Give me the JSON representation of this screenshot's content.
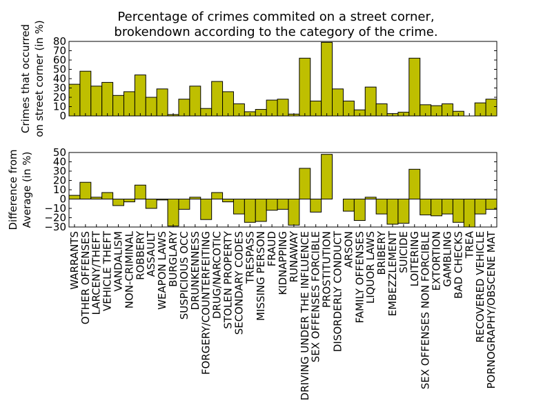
{
  "chart_data": {
    "type": "bar",
    "title_lines": [
      "Percentage of crimes commited on a street corner,",
      "brokendown according to the category of the crime."
    ],
    "bar_color": "#bfbf00",
    "edge_color": "#000000",
    "categories": [
      "WARRANTS",
      "OTHER OFFENSES",
      "LARCENY/THEFT",
      "VEHICLE THEFT",
      "VANDALISM",
      "NON-CRIMINAL",
      "ROBBERY",
      "ASSAULT",
      "WEAPON LAWS",
      "BURGLARY",
      "SUSPICIOUS OCC",
      "DRUNKENNESS",
      "FORGERY/COUNTERFEITING",
      "DRUG/NARCOTIC",
      "STOLEN PROPERTY",
      "SECONDARY CODES",
      "TRESPASS",
      "MISSING PERSON",
      "FRAUD",
      "KIDNAPPING",
      "RUNAWAY",
      "DRIVING UNDER THE INFLUENCE",
      "SEX OFFENSES FORCIBLE",
      "PROSTITUTION",
      "DISORDERLY CONDUCT",
      "ARSON",
      "FAMILY OFFENSES",
      "LIQUOR LAWS",
      "BRIBERY",
      "EMBEZZLEMENT",
      "SUICIDE",
      "LOITERING",
      "SEX OFFENSES NON FORCIBLE",
      "EXTORTION",
      "GAMBLING",
      "BAD CHECKS",
      "TREA",
      "RECOVERED VEHICLE",
      "PORNOGRAPHY/OBSCENE MAT"
    ],
    "panels": [
      {
        "ylabel_lines": [
          "Crimes that occurred",
          "on street corner (in %)"
        ],
        "ylim": [
          0,
          80
        ],
        "yticks": [
          0,
          10,
          20,
          30,
          40,
          50,
          60,
          70,
          80
        ],
        "values": [
          34,
          48,
          32,
          36,
          22,
          26,
          44,
          20,
          29,
          1.5,
          18,
          32,
          8,
          37,
          26,
          13,
          4.5,
          7,
          17,
          18,
          2,
          62,
          16,
          79,
          29,
          16,
          6.5,
          31,
          13,
          2.5,
          4,
          62,
          12,
          11,
          13,
          5,
          0,
          14,
          18
        ]
      },
      {
        "ylabel_lines": [
          "Difference from",
          "Average (in %)"
        ],
        "ylim": [
          -30,
          50
        ],
        "yticks": [
          -30,
          -20,
          -10,
          0,
          10,
          20,
          30,
          40,
          50
        ],
        "values": [
          4,
          18,
          2,
          7,
          -7,
          -3,
          15,
          -10,
          -1,
          -29,
          -11,
          2,
          -22,
          7,
          -3,
          -16,
          -25,
          -24,
          -12,
          -11,
          -28,
          33,
          -14,
          48,
          0,
          -13,
          -23,
          2,
          -16,
          -27,
          -26,
          32,
          -17,
          -18,
          -16,
          -25,
          -30,
          -16,
          -11
        ]
      }
    ]
  }
}
